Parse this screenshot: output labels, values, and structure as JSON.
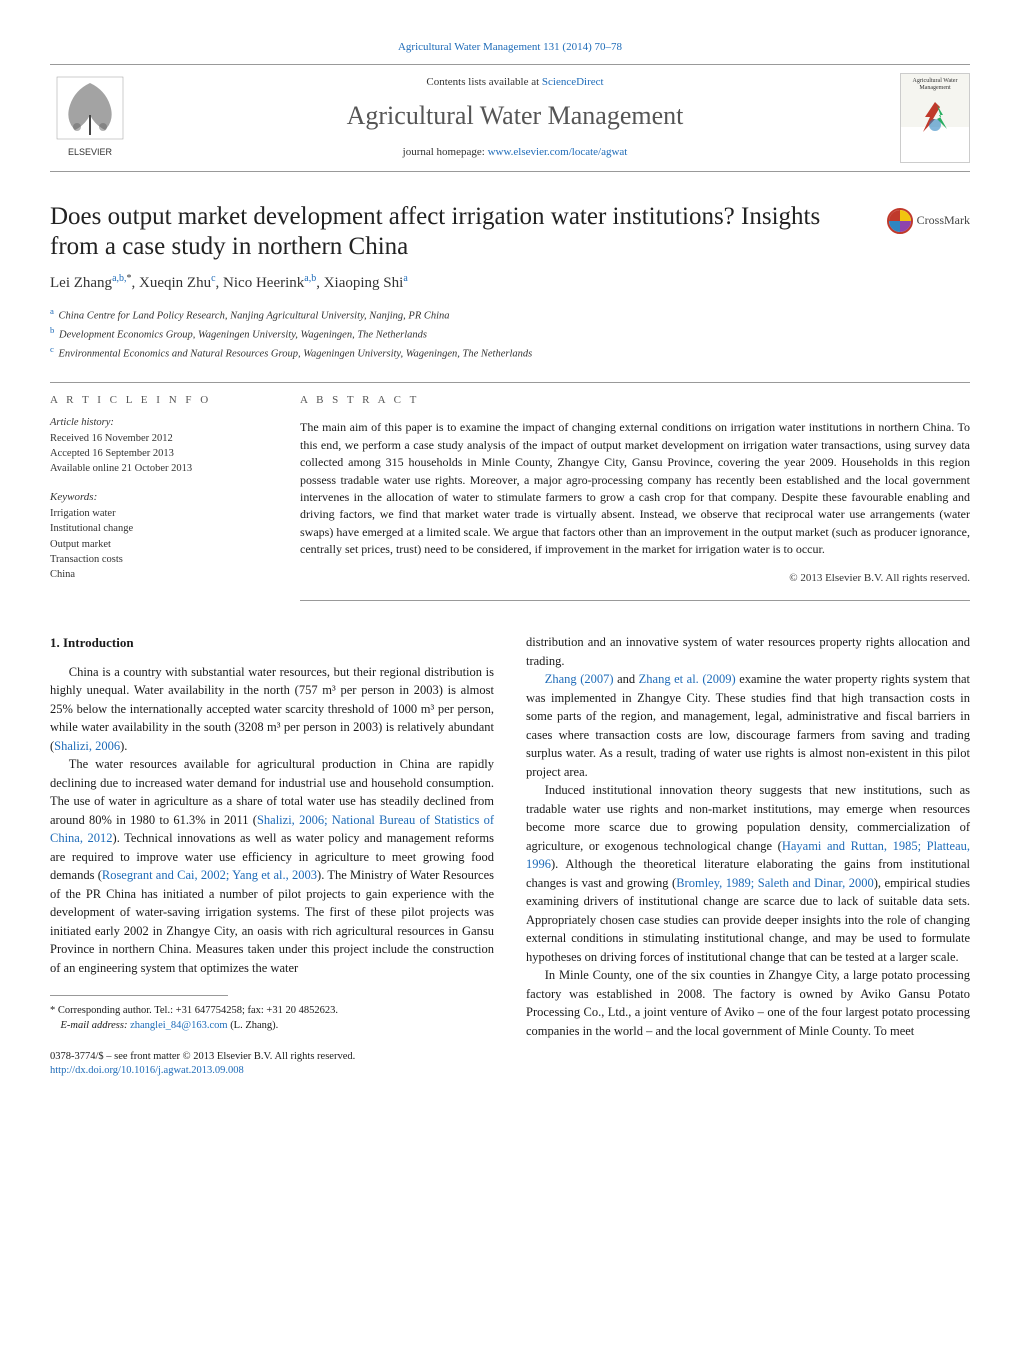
{
  "header": {
    "citation": "Agricultural Water Management 131 (2014) 70–78",
    "contents_prefix": "Contents lists available at ",
    "contents_link": "ScienceDirect",
    "journal_name": "Agricultural Water Management",
    "homepage_prefix": "journal homepage: ",
    "homepage_link": "www.elsevier.com/locate/agwat",
    "publisher": "ELSEVIER",
    "thumb_title": "Agricultural Water Management"
  },
  "crossmark": "CrossMark",
  "title": "Does output market development affect irrigation water institutions? Insights from a case study in northern China",
  "authors_html": "Lei Zhang<sup>a,b,</sup><sup class='asterisk'>*</sup>, Xueqin Zhu<sup>c</sup>, Nico Heerink<sup>a,b</sup>, Xiaoping Shi<sup>a</sup>",
  "affiliations": [
    {
      "sup": "a",
      "text": "China Centre for Land Policy Research, Nanjing Agricultural University, Nanjing, PR China"
    },
    {
      "sup": "b",
      "text": "Development Economics Group, Wageningen University, Wageningen, The Netherlands"
    },
    {
      "sup": "c",
      "text": "Environmental Economics and Natural Resources Group, Wageningen University, Wageningen, The Netherlands"
    }
  ],
  "article_info": {
    "heading": "A R T I C L E   I N F O",
    "history_label": "Article history:",
    "received": "Received 16 November 2012",
    "accepted": "Accepted 16 September 2013",
    "online": "Available online 21 October 2013",
    "keywords_heading": "Keywords:",
    "keywords": [
      "Irrigation water",
      "Institutional change",
      "Output market",
      "Transaction costs",
      "China"
    ]
  },
  "abstract": {
    "heading": "A B S T R A C T",
    "text": "The main aim of this paper is to examine the impact of changing external conditions on irrigation water institutions in northern China. To this end, we perform a case study analysis of the impact of output market development on irrigation water transactions, using survey data collected among 315 households in Minle County, Zhangye City, Gansu Province, covering the year 2009. Households in this region possess tradable water use rights. Moreover, a major agro-processing company has recently been established and the local government intervenes in the allocation of water to stimulate farmers to grow a cash crop for that company. Despite these favourable enabling and driving factors, we find that market water trade is virtually absent. Instead, we observe that reciprocal water use arrangements (water swaps) have emerged at a limited scale. We argue that factors other than an improvement in the output market (such as producer ignorance, centrally set prices, trust) need to be considered, if improvement in the market for irrigation water is to occur.",
    "copyright": "© 2013 Elsevier B.V. All rights reserved."
  },
  "section1": {
    "heading": "1.  Introduction",
    "p1a": "China is a country with substantial water resources, but their regional distribution is highly unequal. Water availability in the north (757 m³ per person in 2003) is almost 25% below the internationally accepted water scarcity threshold of 1000 m³ per person, while water availability in the south (3208 m³ per person in 2003) is relatively abundant (",
    "p1_link1": "Shalizi, 2006",
    "p1b": ").",
    "p2a": "The water resources available for agricultural production in China are rapidly declining due to increased water demand for industrial use and household consumption. The use of water in agriculture as a share of total water use has steadily declined from around 80% in 1980 to 61.3% in 2011 (",
    "p2_link1": "Shalizi, 2006; National Bureau of Statistics of China, 2012",
    "p2b": "). Technical innovations as well as water policy and management reforms are required to improve water use efficiency in agriculture to meet growing food demands (",
    "p2_link2": "Rosegrant and Cai, 2002; Yang et al., 2003",
    "p2c": "). The Ministry of Water Resources of the PR China has initiated a number of pilot projects to gain experience with the development of water-saving irrigation systems. The first of these pilot projects was initiated early 2002 in Zhangye City, an oasis with rich agricultural resources in Gansu Province in northern China. Measures taken under this project include the construction of an engineering system that optimizes the water ",
    "p2d": "distribution and an innovative system of water resources property rights allocation and trading.",
    "p3_link1": "Zhang (2007)",
    "p3a": " and ",
    "p3_link2": "Zhang et al. (2009)",
    "p3b": " examine the water property rights system that was implemented in Zhangye City. These studies find that high transaction costs in some parts of the region, and management, legal, administrative and fiscal barriers in cases where transaction costs are low, discourage farmers from saving and trading surplus water. As a result, trading of water use rights is almost non-existent in this pilot project area.",
    "p4a": "Induced institutional innovation theory suggests that new institutions, such as tradable water use rights and non-market institutions, may emerge when resources become more scarce due to growing population density, commercialization of agriculture, or exogenous technological change (",
    "p4_link1": "Hayami and Ruttan, 1985; Platteau, 1996",
    "p4b": "). Although the theoretical literature elaborating the gains from institutional changes is vast and growing (",
    "p4_link2": "Bromley, 1989; Saleth and Dinar, 2000",
    "p4c": "), empirical studies examining drivers of institutional change are scarce due to lack of suitable data sets. Appropriately chosen case studies can provide deeper insights into the role of changing external conditions in stimulating institutional change, and may be used to formulate hypotheses on driving forces of institutional change that can be tested at a larger scale.",
    "p5": "In Minle County, one of the six counties in Zhangye City, a large potato processing factory was established in 2008. The factory is owned by Aviko Gansu Potato Processing Co., Ltd., a joint venture of Aviko – one of the four largest potato processing companies in the world – and the local government of Minle County. To meet"
  },
  "footnote": {
    "corr": "* Corresponding author. Tel.: +31 647754258; fax: +31 20 4852623.",
    "email_label": "E-mail address: ",
    "email": "zhanglei_84@163.com",
    "email_tail": " (L. Zhang)."
  },
  "footer": {
    "issn": "0378-3774/$ – see front matter © 2013 Elsevier B.V. All rights reserved.",
    "doi": "http://dx.doi.org/10.1016/j.agwat.2013.09.008"
  },
  "colors": {
    "link": "#1e6bb8",
    "rule": "#999999",
    "text": "#1a1a1a",
    "muted": "#555555"
  }
}
